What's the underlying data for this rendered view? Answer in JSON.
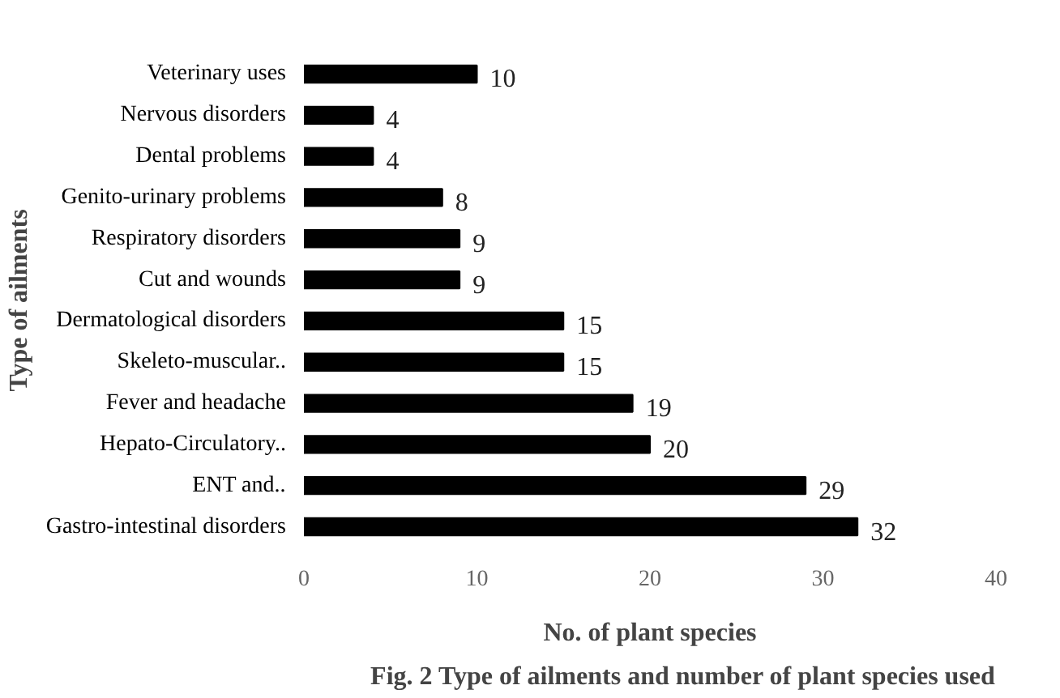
{
  "chart_data": {
    "type": "bar",
    "orientation": "horizontal",
    "xlabel": "No. of plant species",
    "ylabel": "Type of ailments",
    "annotations": [
      "Fig. 2 Type of ailments and number of plant species used"
    ],
    "categories": [
      "Veterinary uses",
      "Nervous disorders",
      "Dental problems",
      "Genito-urinary problems",
      "Respiratory disorders",
      "Cut and wounds",
      "Dermatological disorders",
      "Skeleto-muscular..",
      "Fever and headache",
      "Hepato-Circulatory..",
      "ENT and..",
      "Gastro-intestinal disorders"
    ],
    "values": [
      10,
      4,
      4,
      8,
      9,
      9,
      15,
      15,
      19,
      20,
      29,
      32
    ],
    "color": "#000000",
    "data_labels": true,
    "grid": false,
    "xlim": [
      0,
      40
    ],
    "xticks": [
      0,
      10,
      20,
      30,
      40
    ]
  }
}
